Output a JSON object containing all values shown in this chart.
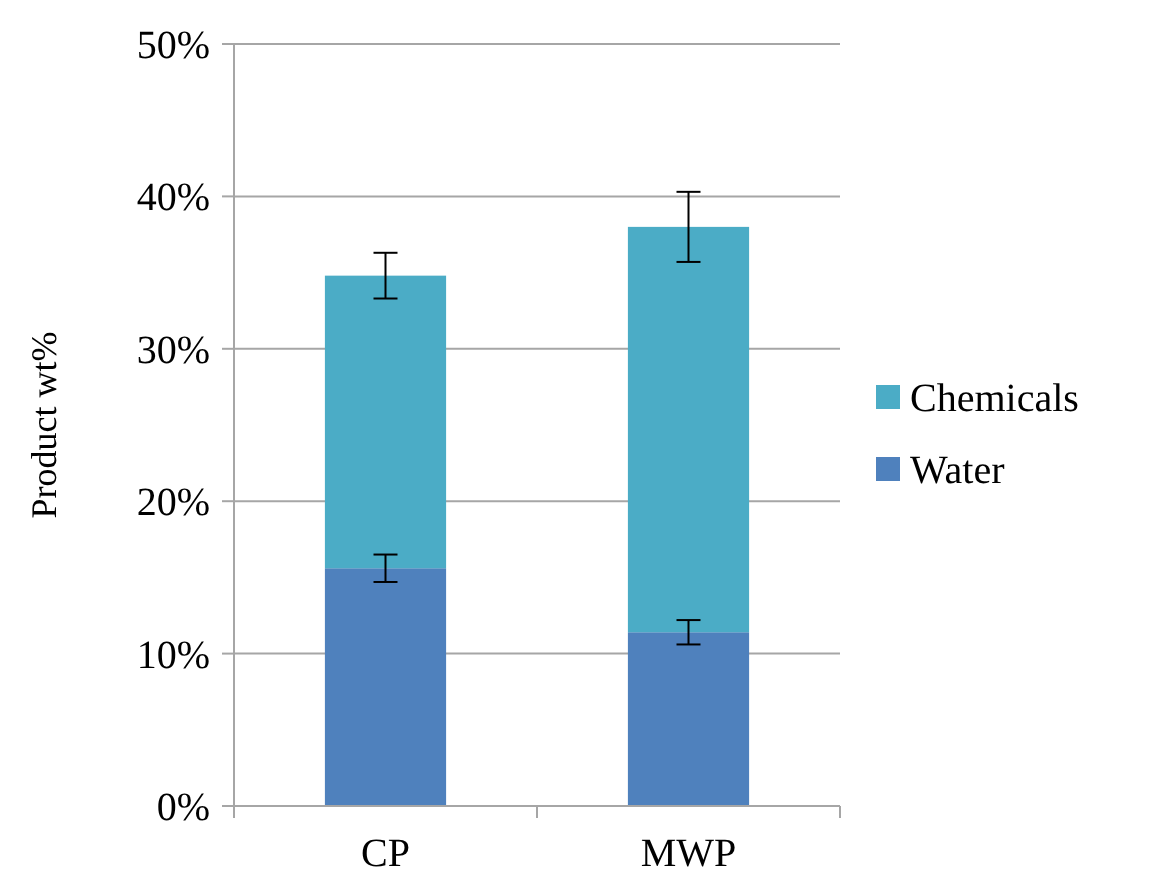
{
  "chart_data": {
    "type": "bar",
    "stacked": true,
    "ylabel": "Product wt%",
    "categories": [
      "CP",
      "MWP"
    ],
    "series": [
      {
        "name": "Water",
        "color": "#4f81bd",
        "values": [
          15.6,
          11.4
        ],
        "errors": [
          0.9,
          0.8
        ]
      },
      {
        "name": "Chemicals",
        "color": "#4bacc6",
        "values": [
          19.2,
          26.6
        ],
        "errors": [
          1.5,
          2.3
        ]
      }
    ],
    "ylim": [
      0,
      50
    ],
    "yticks": [
      {
        "value": 0,
        "label": "0%"
      },
      {
        "value": 10,
        "label": "10%"
      },
      {
        "value": 20,
        "label": "20%"
      },
      {
        "value": 30,
        "label": "30%"
      },
      {
        "value": 40,
        "label": "40%"
      },
      {
        "value": 50,
        "label": "50%"
      }
    ],
    "grid": "y",
    "legend": "right"
  }
}
